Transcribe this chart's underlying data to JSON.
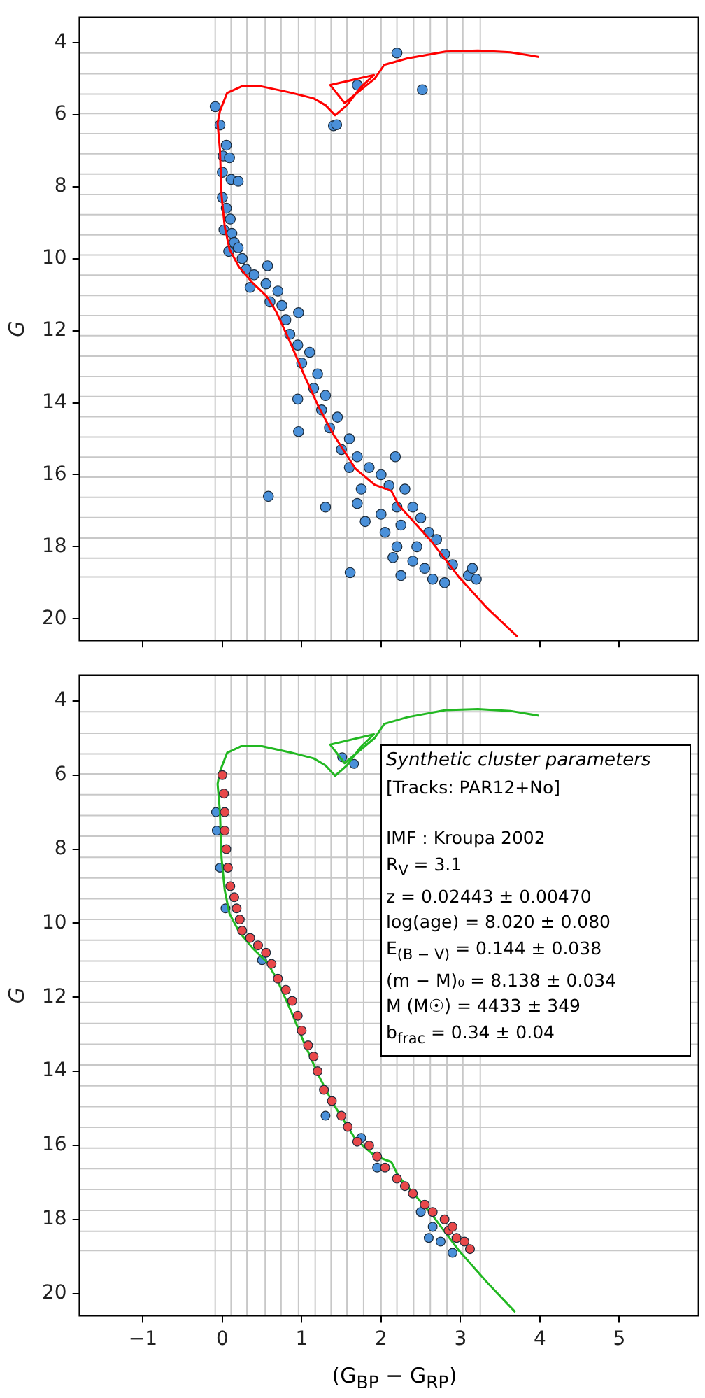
{
  "chart_data": [
    {
      "type": "scatter",
      "ylabel": "G",
      "xlim": [
        -1.8,
        6.0
      ],
      "ylim": [
        20.6,
        3.3
      ],
      "xticks": [
        -1,
        0,
        1,
        2,
        3,
        4,
        5
      ],
      "yticks": [
        4,
        6,
        8,
        10,
        12,
        14,
        16,
        18,
        20
      ],
      "tick_labels": "y",
      "series": [
        {
          "type": "scatter",
          "marker": "circle",
          "color": "#4a90d9",
          "x": [
            -0.09,
            -0.03,
            0.05,
            0.01,
            0.09,
            0.0,
            0.11,
            0.2,
            0.0,
            0.05,
            0.1,
            0.02,
            0.12,
            0.15,
            0.2,
            0.08,
            0.25,
            0.3,
            0.57,
            0.4,
            0.35,
            0.55,
            0.7,
            0.6,
            0.75,
            0.96,
            0.8,
            0.85,
            0.95,
            1.1,
            1.0,
            1.2,
            1.15,
            0.95,
            1.3,
            1.25,
            0.96,
            1.45,
            1.35,
            1.6,
            1.5,
            1.7,
            2.18,
            1.6,
            1.85,
            2.0,
            1.75,
            2.1,
            2.3,
            0.58,
            1.3,
            1.7,
            1.8,
            2.0,
            2.2,
            2.4,
            2.05,
            2.25,
            2.5,
            2.6,
            2.2,
            2.45,
            2.7,
            2.15,
            2.4,
            2.8,
            2.55,
            2.9,
            2.65,
            2.8,
            3.1,
            3.2,
            3.15,
            1.61,
            2.25,
            1.4,
            1.44,
            1.7,
            2.2,
            2.52
          ],
          "values": [
            5.78,
            6.29,
            6.85,
            7.15,
            7.2,
            7.6,
            7.8,
            7.85,
            8.3,
            8.6,
            8.9,
            9.2,
            9.3,
            9.55,
            9.7,
            9.8,
            10.0,
            10.3,
            10.2,
            10.45,
            10.8,
            10.7,
            10.9,
            11.2,
            11.3,
            11.5,
            11.7,
            12.1,
            12.4,
            12.6,
            12.9,
            13.2,
            13.6,
            13.9,
            13.8,
            14.2,
            14.8,
            14.4,
            14.7,
            15.0,
            15.3,
            15.5,
            15.5,
            15.8,
            15.8,
            16.0,
            16.4,
            16.3,
            16.4,
            16.6,
            16.9,
            16.8,
            17.3,
            17.1,
            16.9,
            16.9,
            17.6,
            17.4,
            17.2,
            17.6,
            18.0,
            18.0,
            17.8,
            18.3,
            18.4,
            18.2,
            18.6,
            18.5,
            18.9,
            19.0,
            18.8,
            18.9,
            18.6,
            18.72,
            18.8,
            6.31,
            6.28,
            5.18,
            4.29,
            5.31
          ]
        },
        {
          "type": "line",
          "marker": "none",
          "color": "#ff0000",
          "x": [
            3.72,
            3.34,
            2.98,
            2.63,
            2.22,
            2.13,
            1.92,
            1.68,
            1.39,
            1.21,
            1.03,
            0.86,
            0.68,
            0.56,
            0.38,
            0.21,
            0.09,
            0.03,
            -0.01,
            -0.03,
            -0.06,
            -0.03,
            0.06,
            0.24,
            0.5,
            0.86,
            1.15,
            1.3,
            1.42,
            1.57,
            1.74,
            1.91,
            1.36,
            1.54,
            1.92,
            2.04,
            2.33,
            2.81,
            3.22,
            3.63,
            3.99
          ],
          "values": [
            20.5,
            19.71,
            18.84,
            17.84,
            16.84,
            16.45,
            16.28,
            15.84,
            14.85,
            14.1,
            13.23,
            12.35,
            11.48,
            11.05,
            10.67,
            10.23,
            9.74,
            9.11,
            8.24,
            6.99,
            6.24,
            5.9,
            5.4,
            5.22,
            5.22,
            5.39,
            5.55,
            5.74,
            6.02,
            5.74,
            5.25,
            4.9,
            5.18,
            5.68,
            5.0,
            4.62,
            4.44,
            4.25,
            4.22,
            4.27,
            4.4
          ]
        }
      ],
      "ref_lines": [
        {
          "axis": "x",
          "value": -0.09,
          "color": "#c8c8c8"
        },
        {
          "axis": "x",
          "value": 0.11,
          "color": "#c8c8c8"
        },
        {
          "axis": "x",
          "value": 0.31,
          "color": "#c8c8c8"
        },
        {
          "axis": "x",
          "value": 0.54,
          "color": "#c8c8c8"
        },
        {
          "axis": "x",
          "value": 0.74,
          "color": "#c8c8c8"
        },
        {
          "axis": "x",
          "value": 0.96,
          "color": "#c8c8c8"
        },
        {
          "axis": "x",
          "value": 1.17,
          "color": "#c8c8c8"
        },
        {
          "axis": "x",
          "value": 1.37,
          "color": "#c8c8c8"
        },
        {
          "axis": "x",
          "value": 1.57,
          "color": "#c8c8c8"
        },
        {
          "axis": "x",
          "value": 1.78,
          "color": "#c8c8c8"
        },
        {
          "axis": "x",
          "value": 2.0,
          "color": "#c8c8c8"
        },
        {
          "axis": "x",
          "value": 2.2,
          "color": "#c8c8c8"
        },
        {
          "axis": "x",
          "value": 2.41,
          "color": "#c8c8c8"
        },
        {
          "axis": "x",
          "value": 2.62,
          "color": "#c8c8c8"
        },
        {
          "axis": "x",
          "value": 2.83,
          "color": "#c8c8c8"
        },
        {
          "axis": "x",
          "value": 3.03,
          "color": "#c8c8c8"
        },
        {
          "axis": "x",
          "value": 3.25,
          "color": "#c8c8c8"
        },
        {
          "axis": "y",
          "value": 4.29,
          "color": "#c8c8c8"
        },
        {
          "axis": "y",
          "value": 4.87,
          "color": "#c8c8c8"
        },
        {
          "axis": "y",
          "value": 5.43,
          "color": "#c8c8c8"
        },
        {
          "axis": "y",
          "value": 5.97,
          "color": "#c8c8c8"
        },
        {
          "axis": "y",
          "value": 6.53,
          "color": "#c8c8c8"
        },
        {
          "axis": "y",
          "value": 7.09,
          "color": "#c8c8c8"
        },
        {
          "axis": "y",
          "value": 7.65,
          "color": "#c8c8c8"
        },
        {
          "axis": "y",
          "value": 8.22,
          "color": "#c8c8c8"
        },
        {
          "axis": "y",
          "value": 8.78,
          "color": "#c8c8c8"
        },
        {
          "axis": "y",
          "value": 9.34,
          "color": "#c8c8c8"
        },
        {
          "axis": "y",
          "value": 9.9,
          "color": "#c8c8c8"
        },
        {
          "axis": "y",
          "value": 10.46,
          "color": "#c8c8c8"
        },
        {
          "axis": "y",
          "value": 11.02,
          "color": "#c8c8c8"
        },
        {
          "axis": "y",
          "value": 11.58,
          "color": "#c8c8c8"
        },
        {
          "axis": "y",
          "value": 12.14,
          "color": "#c8c8c8"
        },
        {
          "axis": "y",
          "value": 12.71,
          "color": "#c8c8c8"
        },
        {
          "axis": "y",
          "value": 13.27,
          "color": "#c8c8c8"
        },
        {
          "axis": "y",
          "value": 13.83,
          "color": "#c8c8c8"
        },
        {
          "axis": "y",
          "value": 14.39,
          "color": "#c8c8c8"
        },
        {
          "axis": "y",
          "value": 14.95,
          "color": "#c8c8c8"
        },
        {
          "axis": "y",
          "value": 15.51,
          "color": "#c8c8c8"
        },
        {
          "axis": "y",
          "value": 16.07,
          "color": "#c8c8c8"
        },
        {
          "axis": "y",
          "value": 16.63,
          "color": "#c8c8c8"
        },
        {
          "axis": "y",
          "value": 17.19,
          "color": "#c8c8c8"
        },
        {
          "axis": "y",
          "value": 17.76,
          "color": "#c8c8c8"
        },
        {
          "axis": "y",
          "value": 18.32,
          "color": "#c8c8c8"
        },
        {
          "axis": "y",
          "value": 18.84,
          "color": "#c8c8c8"
        }
      ]
    },
    {
      "type": "scatter",
      "xlabel": "(G$_{BP}$ − G$_{RP}$)",
      "ylabel": "G",
      "xlim": [
        -1.8,
        6.0
      ],
      "ylim": [
        20.6,
        3.3
      ],
      "xticks": [
        -1,
        0,
        1,
        2,
        3,
        4,
        5
      ],
      "yticks": [
        4,
        6,
        8,
        10,
        12,
        14,
        16,
        18,
        20
      ],
      "series": [
        {
          "type": "scatter",
          "marker": "circle",
          "color": "#4a90d9",
          "x": [
            1.51,
            1.66,
            -0.08,
            -0.07,
            -0.03,
            0.04,
            0.5,
            1.3,
            1.75,
            1.95,
            2.5,
            2.65,
            2.75,
            2.9,
            2.6
          ],
          "values": [
            5.52,
            5.7,
            7.0,
            7.5,
            8.5,
            9.6,
            11.0,
            15.2,
            15.8,
            16.6,
            17.8,
            18.2,
            18.6,
            18.9,
            18.5
          ]
        },
        {
          "type": "line",
          "marker": "none",
          "color": "#22b822",
          "x": [
            3.69,
            3.34,
            2.98,
            2.63,
            2.22,
            2.13,
            1.92,
            1.68,
            1.39,
            1.21,
            1.03,
            0.86,
            0.68,
            0.56,
            0.38,
            0.21,
            0.09,
            0.03,
            -0.01,
            -0.03,
            -0.06,
            -0.03,
            0.06,
            0.24,
            0.5,
            0.86,
            1.15,
            1.3,
            1.42,
            1.57,
            1.74,
            1.91,
            1.36,
            1.54,
            1.92,
            2.04,
            2.33,
            2.81,
            3.22,
            3.63,
            3.99
          ],
          "values": [
            20.5,
            19.71,
            18.84,
            17.84,
            16.84,
            16.45,
            16.28,
            15.84,
            14.85,
            14.1,
            13.23,
            12.35,
            11.48,
            11.05,
            10.67,
            10.23,
            9.74,
            9.11,
            8.24,
            6.99,
            6.24,
            5.9,
            5.4,
            5.22,
            5.22,
            5.39,
            5.55,
            5.74,
            6.02,
            5.74,
            5.25,
            4.9,
            5.18,
            5.68,
            5.0,
            4.62,
            4.44,
            4.25,
            4.22,
            4.27,
            4.4
          ]
        },
        {
          "type": "scatter",
          "marker": "circle",
          "color": "#e8484a",
          "x": [
            0.0,
            0.02,
            0.03,
            0.03,
            0.05,
            0.07,
            0.1,
            0.15,
            0.18,
            0.22,
            0.25,
            0.35,
            0.45,
            0.55,
            0.62,
            0.7,
            0.8,
            0.88,
            0.95,
            1.0,
            1.08,
            1.15,
            1.2,
            1.28,
            1.38,
            1.5,
            1.58,
            1.7,
            1.85,
            1.95,
            2.05,
            2.2,
            2.3,
            2.4,
            2.55,
            2.65,
            2.8,
            2.85,
            2.95,
            3.05,
            3.12,
            2.9
          ],
          "values": [
            6.0,
            6.5,
            7.0,
            7.5,
            8.0,
            8.5,
            9.0,
            9.3,
            9.6,
            9.9,
            10.2,
            10.4,
            10.6,
            10.8,
            11.1,
            11.5,
            11.8,
            12.1,
            12.5,
            12.9,
            13.3,
            13.6,
            14.0,
            14.5,
            14.8,
            15.2,
            15.5,
            15.9,
            16.0,
            16.3,
            16.6,
            16.9,
            17.1,
            17.3,
            17.6,
            17.8,
            18.0,
            18.3,
            18.5,
            18.6,
            18.8,
            18.2
          ]
        }
      ],
      "annotations": [
        "Synthetic cluster parameters",
        "[Tracks: PAR12+No]",
        "IMF : Kroupa 2002",
        "R$_{V}$ = 3.1",
        "z = 0.02443 ± 0.00470",
        "log(age) = 8.020 ± 0.080",
        "E$_{(B − V)}$ = 0.144 ± 0.038",
        "(m − M)₀ = 8.138 ± 0.034",
        "M (M☉) = 4433 ± 349",
        "b$_{frac}$ = 0.34 ± 0.04"
      ],
      "ref_lines": [
        {
          "axis": "x",
          "value": -0.09,
          "color": "#c8c8c8"
        },
        {
          "axis": "x",
          "value": 0.11,
          "color": "#c8c8c8"
        },
        {
          "axis": "x",
          "value": 0.31,
          "color": "#c8c8c8"
        },
        {
          "axis": "x",
          "value": 0.54,
          "color": "#c8c8c8"
        },
        {
          "axis": "x",
          "value": 0.74,
          "color": "#c8c8c8"
        },
        {
          "axis": "x",
          "value": 0.96,
          "color": "#c8c8c8"
        },
        {
          "axis": "x",
          "value": 1.17,
          "color": "#c8c8c8"
        },
        {
          "axis": "x",
          "value": 1.37,
          "color": "#c8c8c8"
        },
        {
          "axis": "x",
          "value": 1.57,
          "color": "#c8c8c8"
        },
        {
          "axis": "x",
          "value": 1.78,
          "color": "#c8c8c8"
        },
        {
          "axis": "x",
          "value": 2.0,
          "color": "#c8c8c8"
        },
        {
          "axis": "x",
          "value": 2.2,
          "color": "#c8c8c8"
        },
        {
          "axis": "x",
          "value": 2.41,
          "color": "#c8c8c8"
        },
        {
          "axis": "x",
          "value": 2.62,
          "color": "#c8c8c8"
        },
        {
          "axis": "x",
          "value": 2.83,
          "color": "#c8c8c8"
        },
        {
          "axis": "x",
          "value": 3.03,
          "color": "#c8c8c8"
        },
        {
          "axis": "x",
          "value": 3.25,
          "color": "#c8c8c8"
        },
        {
          "axis": "y",
          "value": 4.29,
          "color": "#c8c8c8"
        },
        {
          "axis": "y",
          "value": 4.87,
          "color": "#c8c8c8"
        },
        {
          "axis": "y",
          "value": 5.43,
          "color": "#c8c8c8"
        },
        {
          "axis": "y",
          "value": 5.97,
          "color": "#c8c8c8"
        },
        {
          "axis": "y",
          "value": 6.53,
          "color": "#c8c8c8"
        },
        {
          "axis": "y",
          "value": 7.09,
          "color": "#c8c8c8"
        },
        {
          "axis": "y",
          "value": 7.65,
          "color": "#c8c8c8"
        },
        {
          "axis": "y",
          "value": 8.22,
          "color": "#c8c8c8"
        },
        {
          "axis": "y",
          "value": 8.78,
          "color": "#c8c8c8"
        },
        {
          "axis": "y",
          "value": 9.34,
          "color": "#c8c8c8"
        },
        {
          "axis": "y",
          "value": 9.9,
          "color": "#c8c8c8"
        },
        {
          "axis": "y",
          "value": 10.46,
          "color": "#c8c8c8"
        },
        {
          "axis": "y",
          "value": 11.02,
          "color": "#c8c8c8"
        },
        {
          "axis": "y",
          "value": 11.58,
          "color": "#c8c8c8"
        },
        {
          "axis": "y",
          "value": 12.14,
          "color": "#c8c8c8"
        },
        {
          "axis": "y",
          "value": 12.71,
          "color": "#c8c8c8"
        },
        {
          "axis": "y",
          "value": 13.27,
          "color": "#c8c8c8"
        },
        {
          "axis": "y",
          "value": 13.83,
          "color": "#c8c8c8"
        },
        {
          "axis": "y",
          "value": 14.39,
          "color": "#c8c8c8"
        },
        {
          "axis": "y",
          "value": 14.95,
          "color": "#c8c8c8"
        },
        {
          "axis": "y",
          "value": 15.51,
          "color": "#c8c8c8"
        },
        {
          "axis": "y",
          "value": 16.07,
          "color": "#c8c8c8"
        },
        {
          "axis": "y",
          "value": 16.63,
          "color": "#c8c8c8"
        },
        {
          "axis": "y",
          "value": 17.19,
          "color": "#c8c8c8"
        },
        {
          "axis": "y",
          "value": 17.76,
          "color": "#c8c8c8"
        },
        {
          "axis": "y",
          "value": 18.32,
          "color": "#c8c8c8"
        },
        {
          "axis": "y",
          "value": 18.84,
          "color": "#c8c8c8"
        }
      ]
    }
  ]
}
